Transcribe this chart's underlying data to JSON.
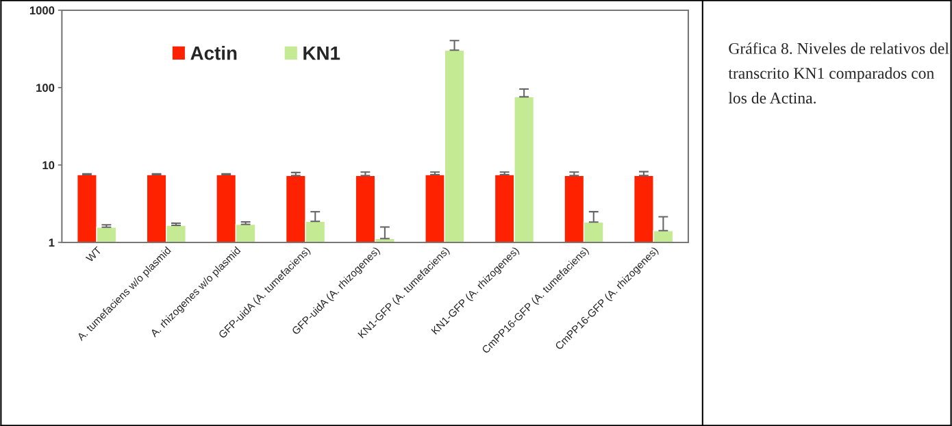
{
  "chart_data": {
    "type": "bar",
    "categories": [
      "WT",
      "A. tumefaciens w/o plasmid",
      "A. rhizogenes w/o plasmid",
      "GFP-uidA (A. tumefaciens)",
      "GFP-uidA (A. rhizogenes)",
      "KN1-GFP (A. tumefaciens)",
      "KN1-GFP (A. rhizogenes)",
      "CmPP16-GFP (A. tumefaciens)",
      "CmPP16-GFP (A. rhizogenes)"
    ],
    "series": [
      {
        "name": "Actin",
        "color": "#ff2200",
        "values": [
          7.5,
          7.5,
          7.5,
          7.3,
          7.3,
          7.5,
          7.5,
          7.3,
          7.3
        ],
        "errors": [
          [
            7.5,
            7.7
          ],
          [
            7.5,
            7.7
          ],
          [
            7.5,
            7.7
          ],
          [
            7.3,
            8.0
          ],
          [
            7.3,
            8.1
          ],
          [
            7.5,
            8.1
          ],
          [
            7.5,
            8.1
          ],
          [
            7.3,
            8.1
          ],
          [
            7.3,
            8.2
          ]
        ]
      },
      {
        "name": "KN1",
        "color": "#c4ea94",
        "values": [
          1.57,
          1.66,
          1.71,
          1.87,
          1.12,
          305,
          76,
          1.83,
          1.42
        ],
        "errors": [
          [
            1.57,
            1.69
          ],
          [
            1.66,
            1.77
          ],
          [
            1.71,
            1.84
          ],
          [
            1.87,
            2.49
          ],
          [
            1.12,
            1.58
          ],
          [
            305,
            405
          ],
          [
            76,
            96
          ],
          [
            1.83,
            2.49
          ],
          [
            1.42,
            2.14
          ]
        ]
      }
    ],
    "log": "y",
    "ylim": [
      1,
      1000
    ],
    "yticks": [
      1,
      10,
      100,
      1000
    ],
    "grid": false,
    "legend": "top left",
    "annotations": [
      "Gráfica 8. Niveles de relativos del transcrito KN1 comparados con los de Actina."
    ]
  }
}
